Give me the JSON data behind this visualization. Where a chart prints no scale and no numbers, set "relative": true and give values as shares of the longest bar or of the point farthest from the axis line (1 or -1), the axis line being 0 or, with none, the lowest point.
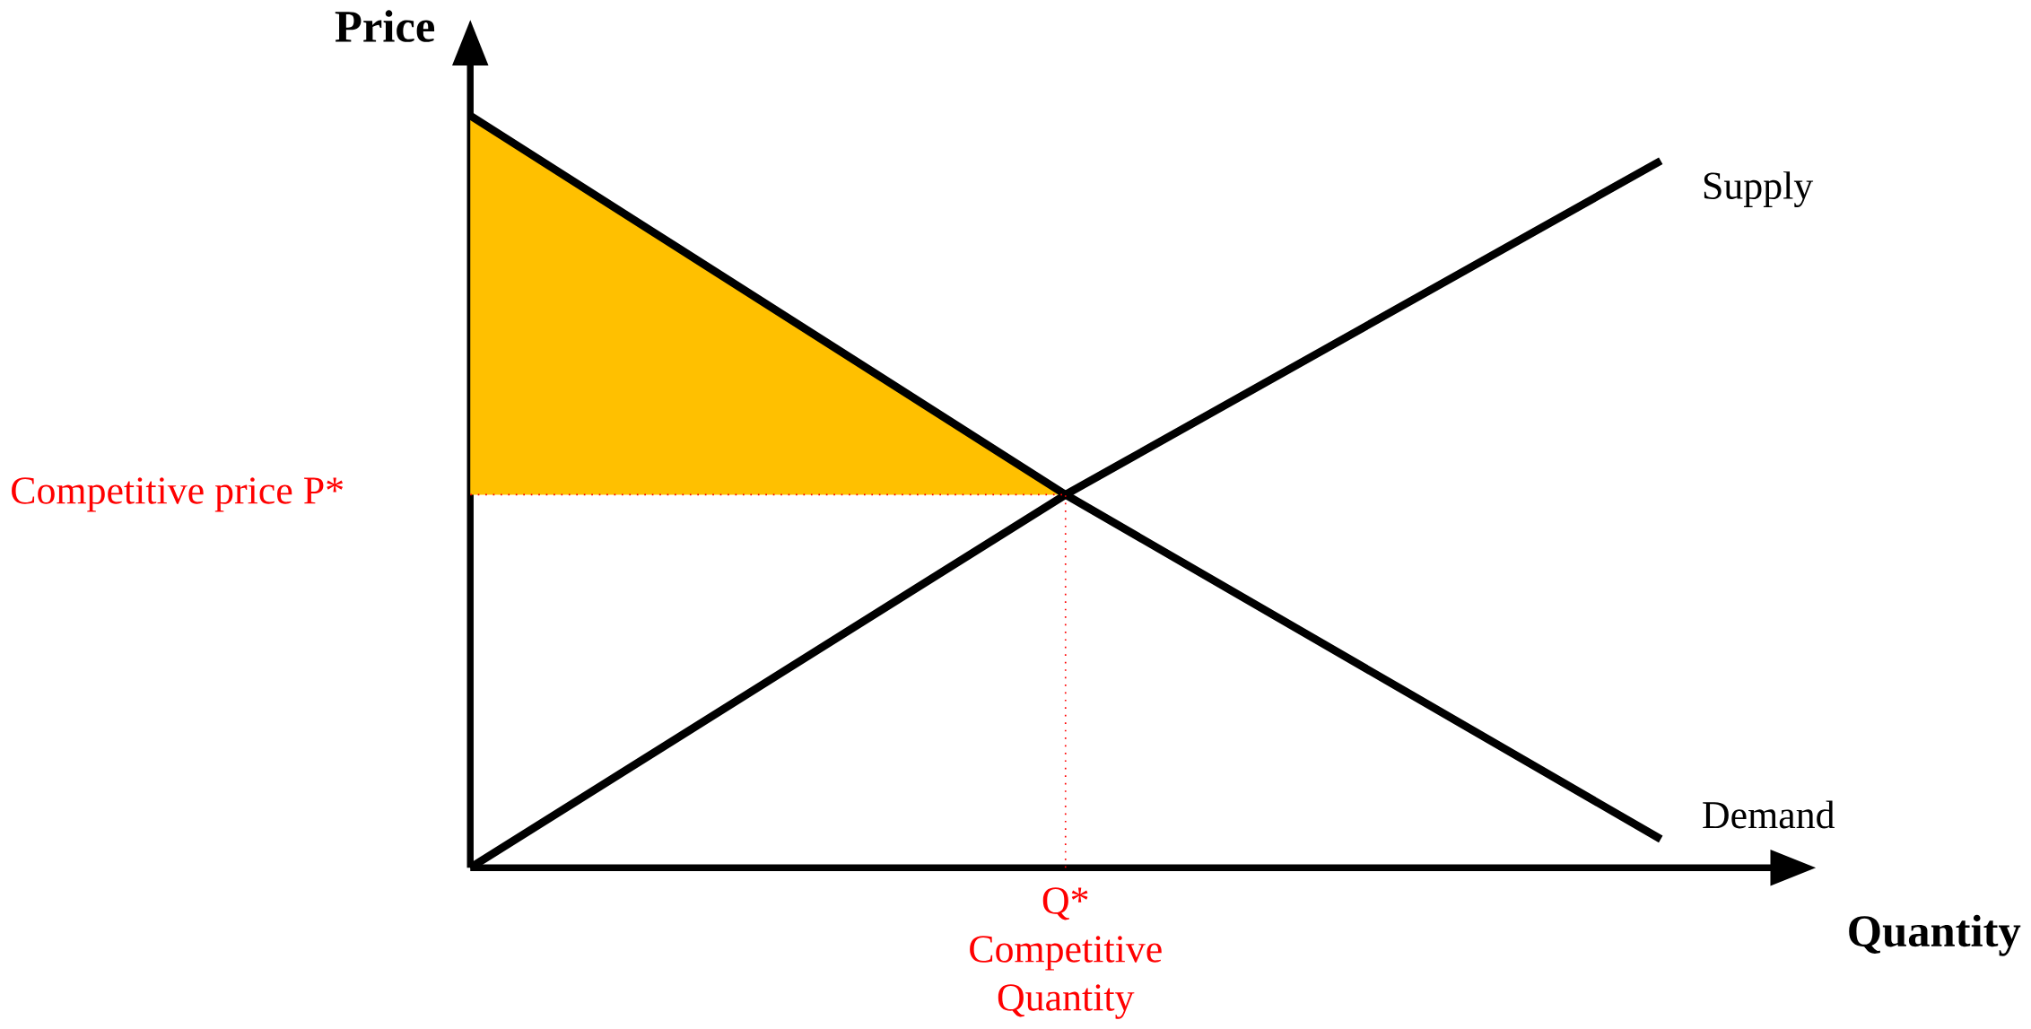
{
  "chart_data": {
    "type": "line",
    "relative": true,
    "xlabel": "Quantity",
    "ylabel": "Price",
    "categories": [
      null,
      null,
      null
    ],
    "series": [
      {
        "type": "area",
        "color": "#ffc000",
        "values": [
          1,
          0.496,
          null
        ]
      },
      {
        "name": "Supply",
        "color": "#000000",
        "values": [
          0,
          0.496,
          0.94
        ]
      },
      {
        "name": "Demand",
        "color": "#000000",
        "values": [
          1,
          0.496,
          0.038
        ]
      }
    ],
    "ref_lines": [
      {
        "axis": "y",
        "value": 0.496,
        "label": "Competitive price P*",
        "color": "#ff0000",
        "line_style": "dotted"
      }
    ],
    "annotations": [
      "Q* Competitive Quantity"
    ]
  }
}
